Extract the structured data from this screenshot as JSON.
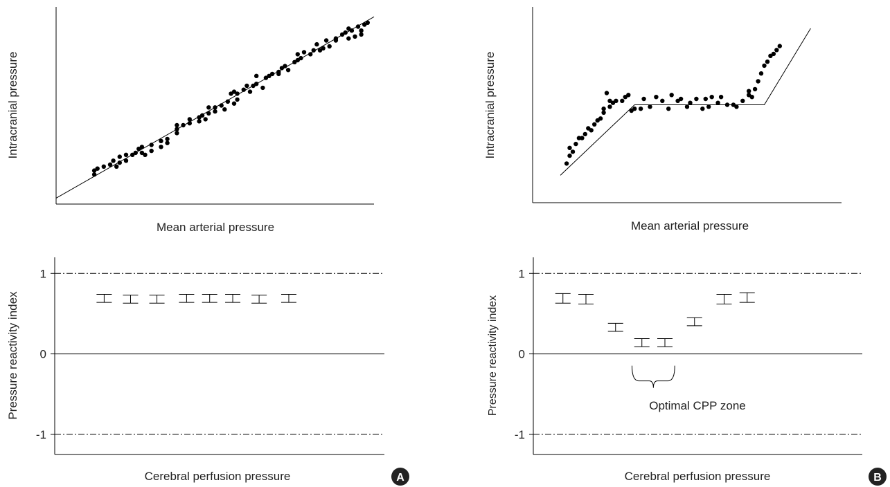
{
  "panels": [
    {
      "label": "A",
      "badge_color": "#222222"
    },
    {
      "label": "B",
      "badge_color": "#222222"
    }
  ],
  "chart_data": [
    {
      "id": "A-top",
      "type": "scatter",
      "title": "",
      "xlabel": "Mean arterial pressure",
      "ylabel": "Intracranial pressure",
      "xlim": [
        0,
        100
      ],
      "ylim": [
        0,
        100
      ],
      "grid": false,
      "x": [
        12,
        13,
        15,
        12,
        17,
        19,
        20,
        18,
        20,
        22,
        22,
        25,
        24,
        27,
        28,
        27,
        26,
        30,
        30,
        33,
        33,
        35,
        35,
        38,
        38,
        40,
        38,
        42,
        42,
        45,
        47,
        45,
        48,
        46,
        48,
        50,
        50,
        52,
        53,
        54,
        56,
        55,
        56,
        57,
        57,
        59,
        60,
        62,
        61,
        63,
        65,
        63,
        66,
        67,
        68,
        70,
        71,
        72,
        73,
        70,
        76,
        75,
        76,
        77,
        78,
        80,
        81,
        83,
        84,
        82,
        86,
        85,
        88,
        88,
        90,
        91,
        92,
        93,
        92,
        96,
        98,
        97,
        95,
        96,
        94
      ],
      "y": [
        17,
        18,
        19,
        15,
        20,
        19,
        21,
        22,
        24,
        22,
        25,
        26,
        25,
        26,
        25,
        29,
        28,
        27,
        30,
        29,
        32,
        33,
        31,
        36,
        40,
        40,
        38,
        43,
        41,
        42,
        43,
        44,
        46,
        45,
        49,
        49,
        47,
        50,
        48,
        52,
        51,
        56,
        57,
        56,
        53,
        58,
        60,
        60,
        57,
        61,
        59,
        65,
        64,
        65,
        66,
        67,
        69,
        70,
        68,
        66,
        73,
        72,
        76,
        74,
        77,
        76,
        78,
        78,
        79,
        81,
        80,
        83,
        83,
        84,
        86,
        87,
        84,
        88,
        89,
        88,
        92,
        91,
        90,
        86,
        85
      ],
      "fit_line": {
        "x": [
          0,
          100
        ],
        "y": [
          3,
          95
        ]
      }
    },
    {
      "id": "A-bottom",
      "type": "errorbar",
      "title": "",
      "xlabel": "Cerebral perfusion pressure",
      "ylabel": "Pressure reactivity index",
      "xlim": [
        0,
        100
      ],
      "ylim": [
        -1.25,
        1.2
      ],
      "yticks": [
        {
          "value": 1,
          "label": "1"
        },
        {
          "value": 0,
          "label": "0"
        },
        {
          "value": -1,
          "label": "-1"
        }
      ],
      "reference_lines": [
        {
          "y": 1,
          "style": "dash-dot"
        },
        {
          "y": 0,
          "style": "solid"
        },
        {
          "y": -1,
          "style": "dash-dot"
        }
      ],
      "x": [
        15,
        23,
        31,
        40,
        47,
        54,
        62,
        71
      ],
      "y": [
        0.69,
        0.68,
        0.68,
        0.69,
        0.69,
        0.69,
        0.68,
        0.69
      ],
      "err": [
        0.05,
        0.05,
        0.05,
        0.05,
        0.05,
        0.05,
        0.05,
        0.05
      ]
    },
    {
      "id": "B-top",
      "type": "scatter",
      "title": "",
      "xlabel": "Mean arterial pressure",
      "ylabel": "Intracranial pressure",
      "xlim": [
        0,
        100
      ],
      "ylim": [
        0,
        100
      ],
      "grid": false,
      "x": [
        11,
        12,
        13,
        12,
        14,
        15,
        16,
        17,
        18,
        19,
        20,
        21,
        22,
        23,
        23,
        24,
        25,
        26,
        25,
        27,
        29,
        30,
        31,
        32,
        33,
        35,
        36,
        38,
        40,
        42,
        44,
        45,
        47,
        48,
        50,
        51,
        53,
        55,
        56,
        57,
        58,
        60,
        61,
        63,
        65,
        66,
        68,
        70,
        70,
        71,
        72,
        73,
        74,
        75,
        76,
        77,
        78,
        79,
        80
      ],
      "y": [
        20,
        24,
        26,
        28,
        30,
        33,
        33,
        35,
        38,
        37,
        40,
        42,
        43,
        46,
        48,
        56,
        49,
        51,
        52,
        52,
        52,
        54,
        55,
        47,
        48,
        48,
        53,
        49,
        54,
        52,
        48,
        55,
        52,
        53,
        49,
        51,
        53,
        48,
        53,
        49,
        54,
        51,
        54,
        50,
        50,
        49,
        52,
        55,
        57,
        54,
        58,
        62,
        66,
        70,
        72,
        75,
        76,
        78,
        80
      ],
      "fit_line": {
        "x": [
          9,
          33,
          75,
          90
        ],
        "y": [
          14,
          50,
          50,
          89
        ]
      }
    },
    {
      "id": "B-bottom",
      "type": "errorbar",
      "title": "",
      "xlabel": "Cerebral perfusion pressure",
      "ylabel": "Pressure reactivity index",
      "xlim": [
        0,
        100
      ],
      "ylim": [
        -1.25,
        1.2
      ],
      "yticks": [
        {
          "value": 1,
          "label": "1"
        },
        {
          "value": 0,
          "label": "0"
        },
        {
          "value": -1,
          "label": "-1"
        }
      ],
      "reference_lines": [
        {
          "y": 1,
          "style": "dash-dot"
        },
        {
          "y": 0,
          "style": "solid"
        },
        {
          "y": -1,
          "style": "dash-dot"
        }
      ],
      "x": [
        9,
        16,
        25,
        33,
        40,
        49,
        58,
        65
      ],
      "y": [
        0.69,
        0.68,
        0.33,
        0.14,
        0.14,
        0.4,
        0.68,
        0.7
      ],
      "err": [
        0.06,
        0.06,
        0.05,
        0.05,
        0.05,
        0.05,
        0.06,
        0.06
      ],
      "annotation": {
        "text": "Optimal CPP zone",
        "brace_x": [
          30,
          43
        ]
      }
    }
  ]
}
